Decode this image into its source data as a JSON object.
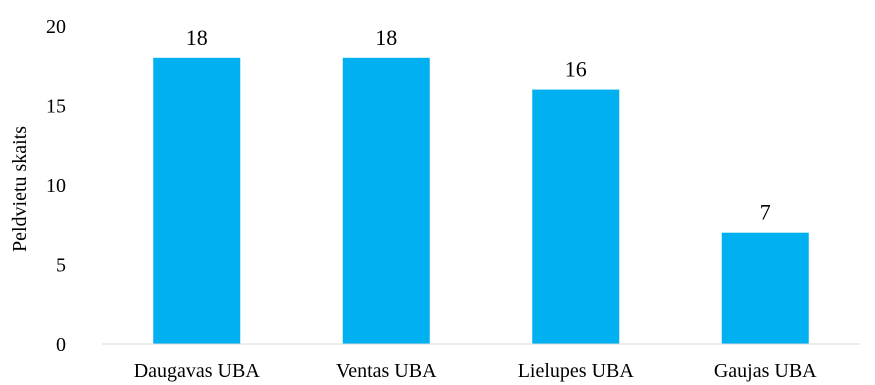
{
  "chart_data": {
    "type": "bar",
    "title": "",
    "xlabel": "",
    "ylabel": "Peldvietu skaits",
    "categories": [
      "Daugavas UBA",
      "Ventas UBA",
      "Lielupes UBA",
      "Gaujas UBA"
    ],
    "values": [
      18,
      18,
      16,
      7
    ],
    "data_labels": [
      "18",
      "18",
      "16",
      "7"
    ],
    "ylim": [
      0,
      20
    ],
    "y_ticks": [
      0,
      5,
      10,
      15,
      20
    ],
    "grid": false,
    "legend": "none",
    "bar_color": "#00B0F0"
  }
}
